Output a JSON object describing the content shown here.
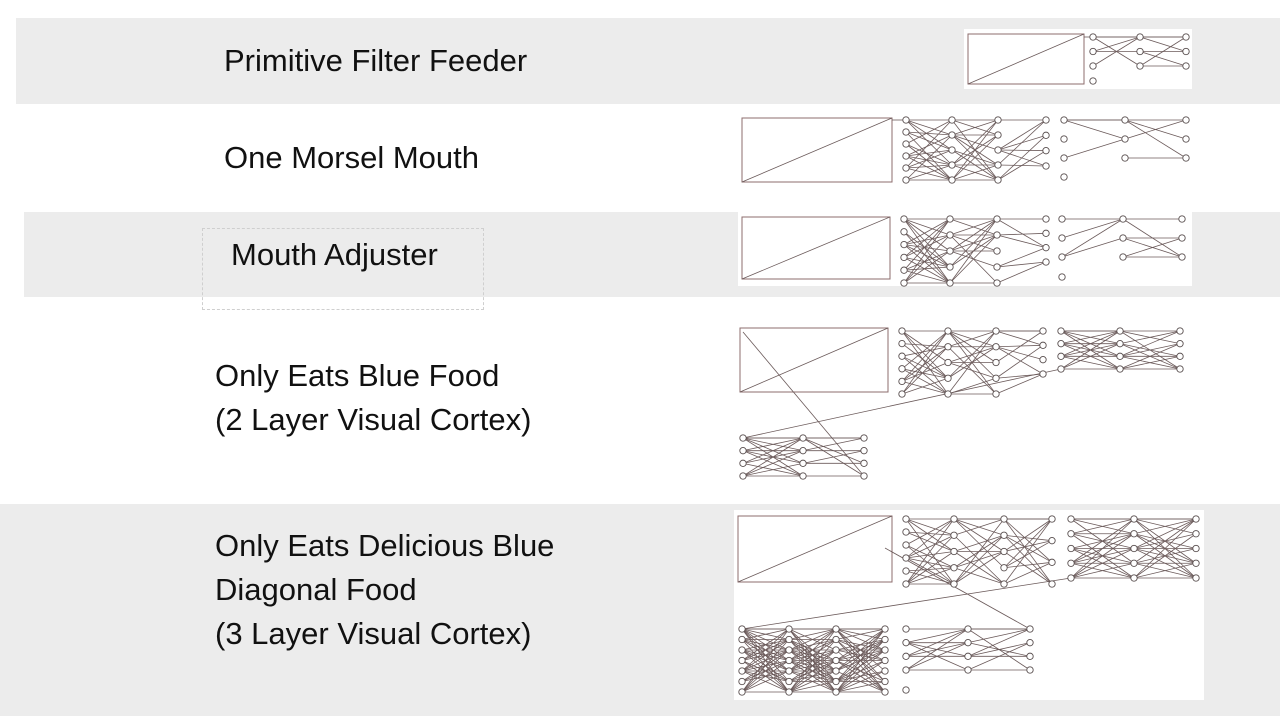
{
  "rows": [
    {
      "id": "primitive-filter-feeder",
      "lines": [
        "Primitive Filter Feeder"
      ]
    },
    {
      "id": "one-morsel-mouth",
      "lines": [
        "One Morsel Mouth"
      ]
    },
    {
      "id": "mouth-adjuster",
      "lines": [
        "Mouth Adjuster"
      ]
    },
    {
      "id": "only-eats-blue-food",
      "lines": [
        "Only Eats Blue Food",
        "(2 Layer Visual Cortex)"
      ]
    },
    {
      "id": "only-eats-delicious-blue-diagonal-food",
      "lines": [
        "Only Eats Delicious Blue",
        "Diagonal Food",
        "(3 Layer Visual Cortex)"
      ]
    }
  ],
  "colors": {
    "band": "#ececec",
    "text": "#111111",
    "edge": "#6b5a5a",
    "node_stroke": "#5a5050"
  }
}
